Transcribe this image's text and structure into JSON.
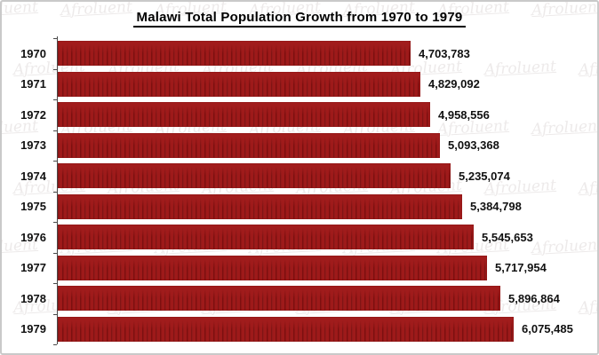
{
  "window": {
    "background_color": "#ffffff",
    "border_color": "#c9c9c9"
  },
  "watermark": {
    "text": "Afroluent",
    "color": "#edeaea"
  },
  "chart_data": {
    "type": "bar",
    "orientation": "horizontal",
    "title": "Malawi Total Population Growth from 1970 to 1979",
    "categories": [
      "1970",
      "1971",
      "1972",
      "1973",
      "1974",
      "1975",
      "1976",
      "1977",
      "1978",
      "1979"
    ],
    "values": [
      4703783,
      4829092,
      4958556,
      5093368,
      5235074,
      5384798,
      5545653,
      5717954,
      5896864,
      6075485
    ],
    "value_labels": [
      "4,703,783",
      "4,829,092",
      "4,958,556",
      "5,093,368",
      "5,235,074",
      "5,384,798",
      "5,545,653",
      "5,717,954",
      "5,896,864",
      "6,075,485"
    ],
    "xlabel": "",
    "ylabel": "",
    "xlim": [
      0,
      7200000
    ],
    "grid": false,
    "legend": "none",
    "bar_color": "#9e1a1a",
    "bar_stripe_color": "#8c1414",
    "label_color": "#111111"
  }
}
